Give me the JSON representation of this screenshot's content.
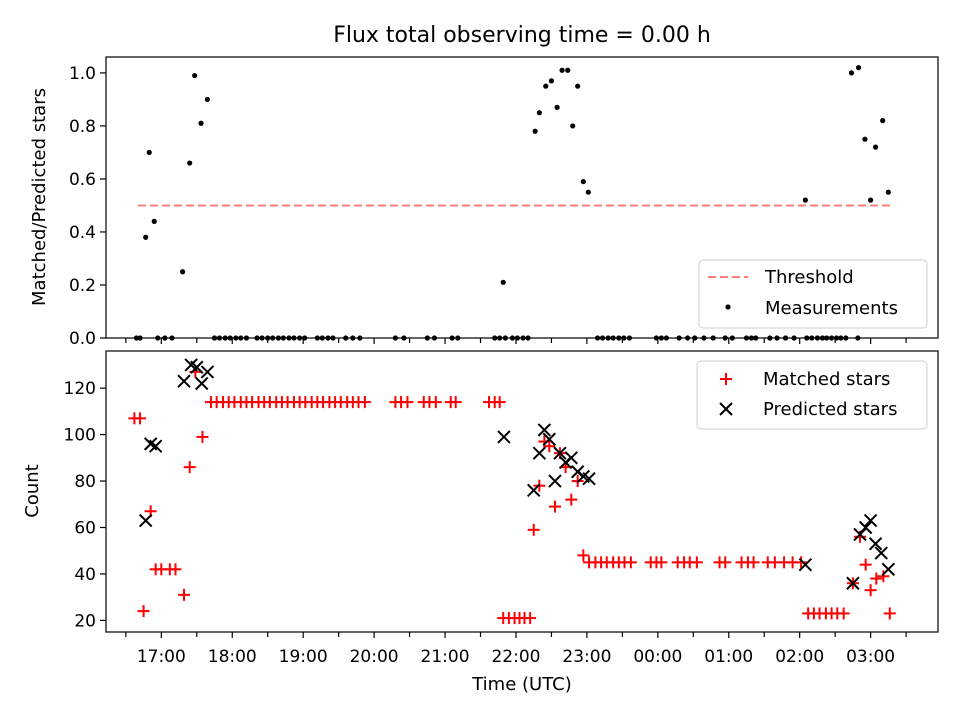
{
  "figure": {
    "title": "Flux total observing time = 0.00 h"
  },
  "chart_data": [
    {
      "type": "scatter",
      "name": "ratio",
      "ylabel": "Matched/Predicted stars",
      "xlabel": "",
      "xlim": [
        16.22,
        27.95
      ],
      "ylim": [
        0,
        1.06
      ],
      "x_ticks": [
        17,
        18,
        19,
        20,
        21,
        22,
        23,
        24,
        25,
        26,
        27
      ],
      "y_ticks": [
        "0.0",
        "0.2",
        "0.4",
        "0.6",
        "0.8",
        "1.0"
      ],
      "y_tick_values": [
        0,
        0.2,
        0.4,
        0.6,
        0.8,
        1.0
      ],
      "legend": [
        "Threshold",
        "Measurements"
      ],
      "legend_position": "lower-right",
      "grid": false,
      "threshold": {
        "name": "Threshold",
        "x": [
          16.67,
          27.33
        ],
        "y": 0.5,
        "color": "#ff7f7f",
        "style": "dashed"
      },
      "series": [
        {
          "name": "Measurements",
          "marker": "dot",
          "color": "#000000",
          "points": [
            [
              16.78,
              0.38
            ],
            [
              16.83,
              0.7
            ],
            [
              16.9,
              0.44
            ],
            [
              17.3,
              0.25
            ],
            [
              17.4,
              0.66
            ],
            [
              17.47,
              0.99
            ],
            [
              17.56,
              0.81
            ],
            [
              17.65,
              0.9
            ],
            [
              21.82,
              0.21
            ],
            [
              22.27,
              0.78
            ],
            [
              22.33,
              0.85
            ],
            [
              22.42,
              0.95
            ],
            [
              22.5,
              0.97
            ],
            [
              22.58,
              0.87
            ],
            [
              22.65,
              1.01
            ],
            [
              22.73,
              1.01
            ],
            [
              22.8,
              0.8
            ],
            [
              22.87,
              0.95
            ],
            [
              22.95,
              0.59
            ],
            [
              23.02,
              0.55
            ],
            [
              26.08,
              0.52
            ],
            [
              26.73,
              1.0
            ],
            [
              26.83,
              1.02
            ],
            [
              26.92,
              0.75
            ],
            [
              27.0,
              0.52
            ],
            [
              27.07,
              0.72
            ],
            [
              27.17,
              0.82
            ],
            [
              27.25,
              0.55
            ],
            [
              16.65,
              0
            ],
            [
              16.7,
              0
            ],
            [
              16.95,
              0
            ],
            [
              17.05,
              0
            ],
            [
              17.15,
              0
            ],
            [
              17.75,
              0
            ],
            [
              17.82,
              0
            ],
            [
              17.9,
              0
            ],
            [
              17.97,
              0
            ],
            [
              18.05,
              0
            ],
            [
              18.12,
              0
            ],
            [
              18.2,
              0
            ],
            [
              18.35,
              0
            ],
            [
              18.42,
              0
            ],
            [
              18.5,
              0
            ],
            [
              18.57,
              0
            ],
            [
              18.65,
              0
            ],
            [
              18.72,
              0
            ],
            [
              18.8,
              0
            ],
            [
              18.87,
              0
            ],
            [
              18.95,
              0
            ],
            [
              19.02,
              0
            ],
            [
              19.2,
              0
            ],
            [
              19.27,
              0
            ],
            [
              19.35,
              0
            ],
            [
              19.42,
              0
            ],
            [
              19.6,
              0
            ],
            [
              19.7,
              0
            ],
            [
              19.8,
              0
            ],
            [
              20.3,
              0
            ],
            [
              20.42,
              0
            ],
            [
              20.75,
              0
            ],
            [
              20.85,
              0
            ],
            [
              21.1,
              0
            ],
            [
              21.18,
              0
            ],
            [
              21.7,
              0
            ],
            [
              21.77,
              0
            ],
            [
              21.85,
              0
            ],
            [
              21.95,
              0
            ],
            [
              22.02,
              0
            ],
            [
              22.1,
              0
            ],
            [
              22.17,
              0
            ],
            [
              23.15,
              0
            ],
            [
              23.22,
              0
            ],
            [
              23.3,
              0
            ],
            [
              23.37,
              0
            ],
            [
              23.45,
              0
            ],
            [
              23.52,
              0
            ],
            [
              23.6,
              0
            ],
            [
              23.98,
              0
            ],
            [
              24.05,
              0
            ],
            [
              24.12,
              0
            ],
            [
              24.3,
              0
            ],
            [
              24.42,
              0
            ],
            [
              24.52,
              0
            ],
            [
              24.65,
              0
            ],
            [
              24.78,
              0
            ],
            [
              24.95,
              0
            ],
            [
              25.05,
              0
            ],
            [
              25.25,
              0
            ],
            [
              25.32,
              0
            ],
            [
              25.38,
              0
            ],
            [
              25.58,
              0
            ],
            [
              25.68,
              0
            ],
            [
              25.8,
              0
            ],
            [
              25.92,
              0
            ],
            [
              26.1,
              0
            ],
            [
              26.17,
              0
            ],
            [
              26.25,
              0
            ],
            [
              26.32,
              0
            ],
            [
              26.38,
              0
            ],
            [
              26.45,
              0
            ],
            [
              26.52,
              0
            ],
            [
              26.58,
              0
            ],
            [
              26.65,
              0
            ],
            [
              26.82,
              0
            ]
          ]
        }
      ]
    },
    {
      "type": "scatter",
      "name": "counts",
      "ylabel": "Count",
      "xlabel": "Time (UTC)",
      "xlim": [
        16.22,
        27.95
      ],
      "ylim": [
        15,
        136
      ],
      "x_ticks": [
        17,
        18,
        19,
        20,
        21,
        22,
        23,
        24,
        25,
        26,
        27
      ],
      "x_tick_labels": [
        "17:00",
        "18:00",
        "19:00",
        "20:00",
        "21:00",
        "22:00",
        "23:00",
        "00:00",
        "01:00",
        "02:00",
        "03:00"
      ],
      "y_ticks": [
        "20",
        "40",
        "60",
        "80",
        "100",
        "120"
      ],
      "y_tick_values": [
        20,
        40,
        60,
        80,
        100,
        120
      ],
      "legend": [
        "Matched stars",
        "Predicted stars"
      ],
      "legend_position": "upper-right",
      "grid": false,
      "series": [
        {
          "name": "Matched stars",
          "marker": "plus",
          "color": "#ff0000",
          "points": [
            [
              16.62,
              107
            ],
            [
              16.7,
              107
            ],
            [
              16.75,
              24
            ],
            [
              16.85,
              67
            ],
            [
              16.92,
              42
            ],
            [
              17.0,
              42
            ],
            [
              17.12,
              42
            ],
            [
              17.2,
              42
            ],
            [
              17.32,
              31
            ],
            [
              17.4,
              86
            ],
            [
              17.48,
              127
            ],
            [
              17.58,
              99
            ],
            [
              17.7,
              114
            ],
            [
              17.78,
              114
            ],
            [
              17.87,
              114
            ],
            [
              17.95,
              114
            ],
            [
              18.03,
              114
            ],
            [
              18.12,
              114
            ],
            [
              18.2,
              114
            ],
            [
              18.28,
              114
            ],
            [
              18.37,
              114
            ],
            [
              18.45,
              114
            ],
            [
              18.53,
              114
            ],
            [
              18.62,
              114
            ],
            [
              18.7,
              114
            ],
            [
              18.78,
              114
            ],
            [
              18.87,
              114
            ],
            [
              18.95,
              114
            ],
            [
              19.03,
              114
            ],
            [
              19.12,
              114
            ],
            [
              19.2,
              114
            ],
            [
              19.28,
              114
            ],
            [
              19.37,
              114
            ],
            [
              19.45,
              114
            ],
            [
              19.53,
              114
            ],
            [
              19.62,
              114
            ],
            [
              19.7,
              114
            ],
            [
              19.78,
              114
            ],
            [
              19.87,
              114
            ],
            [
              20.3,
              114
            ],
            [
              20.38,
              114
            ],
            [
              20.47,
              114
            ],
            [
              20.7,
              114
            ],
            [
              20.78,
              114
            ],
            [
              20.87,
              114
            ],
            [
              21.08,
              114
            ],
            [
              21.15,
              114
            ],
            [
              21.62,
              114
            ],
            [
              21.7,
              114
            ],
            [
              21.77,
              114
            ],
            [
              21.82,
              21
            ],
            [
              21.9,
              21
            ],
            [
              21.98,
              21
            ],
            [
              22.05,
              21
            ],
            [
              22.12,
              21
            ],
            [
              22.2,
              21
            ],
            [
              22.25,
              59
            ],
            [
              22.33,
              78
            ],
            [
              22.4,
              97
            ],
            [
              22.47,
              95
            ],
            [
              22.55,
              69
            ],
            [
              22.62,
              92
            ],
            [
              22.7,
              86
            ],
            [
              22.78,
              72
            ],
            [
              22.87,
              80
            ],
            [
              22.95,
              48
            ],
            [
              23.03,
              45
            ],
            [
              23.12,
              45
            ],
            [
              23.2,
              45
            ],
            [
              23.28,
              45
            ],
            [
              23.37,
              45
            ],
            [
              23.45,
              45
            ],
            [
              23.53,
              45
            ],
            [
              23.62,
              45
            ],
            [
              23.9,
              45
            ],
            [
              23.98,
              45
            ],
            [
              24.05,
              45
            ],
            [
              24.28,
              45
            ],
            [
              24.37,
              45
            ],
            [
              24.45,
              45
            ],
            [
              24.55,
              45
            ],
            [
              24.87,
              45
            ],
            [
              24.95,
              45
            ],
            [
              25.18,
              45
            ],
            [
              25.27,
              45
            ],
            [
              25.35,
              45
            ],
            [
              25.55,
              45
            ],
            [
              25.65,
              45
            ],
            [
              25.78,
              45
            ],
            [
              25.9,
              45
            ],
            [
              26.02,
              45
            ],
            [
              26.12,
              23
            ],
            [
              26.2,
              23
            ],
            [
              26.28,
              23
            ],
            [
              26.37,
              23
            ],
            [
              26.45,
              23
            ],
            [
              26.53,
              23
            ],
            [
              26.62,
              23
            ],
            [
              26.75,
              36
            ],
            [
              26.85,
              56
            ],
            [
              26.93,
              44
            ],
            [
              27.0,
              33
            ],
            [
              27.08,
              38
            ],
            [
              27.18,
              39
            ],
            [
              27.27,
              23
            ]
          ]
        },
        {
          "name": "Predicted stars",
          "marker": "x",
          "color": "#000000",
          "points": [
            [
              16.78,
              63
            ],
            [
              16.85,
              96
            ],
            [
              16.92,
              95
            ],
            [
              17.32,
              123
            ],
            [
              17.42,
              130
            ],
            [
              17.5,
              129
            ],
            [
              17.57,
              122
            ],
            [
              17.65,
              127
            ],
            [
              21.83,
              99
            ],
            [
              22.25,
              76
            ],
            [
              22.33,
              92
            ],
            [
              22.4,
              102
            ],
            [
              22.47,
              98
            ],
            [
              22.55,
              80
            ],
            [
              22.62,
              92
            ],
            [
              22.7,
              88
            ],
            [
              22.78,
              90
            ],
            [
              22.87,
              84
            ],
            [
              22.95,
              82
            ],
            [
              23.03,
              81
            ],
            [
              26.08,
              44
            ],
            [
              26.75,
              36
            ],
            [
              26.85,
              57
            ],
            [
              26.93,
              60
            ],
            [
              27.0,
              63
            ],
            [
              27.07,
              53
            ],
            [
              27.15,
              49
            ],
            [
              27.25,
              42
            ]
          ]
        }
      ]
    }
  ]
}
